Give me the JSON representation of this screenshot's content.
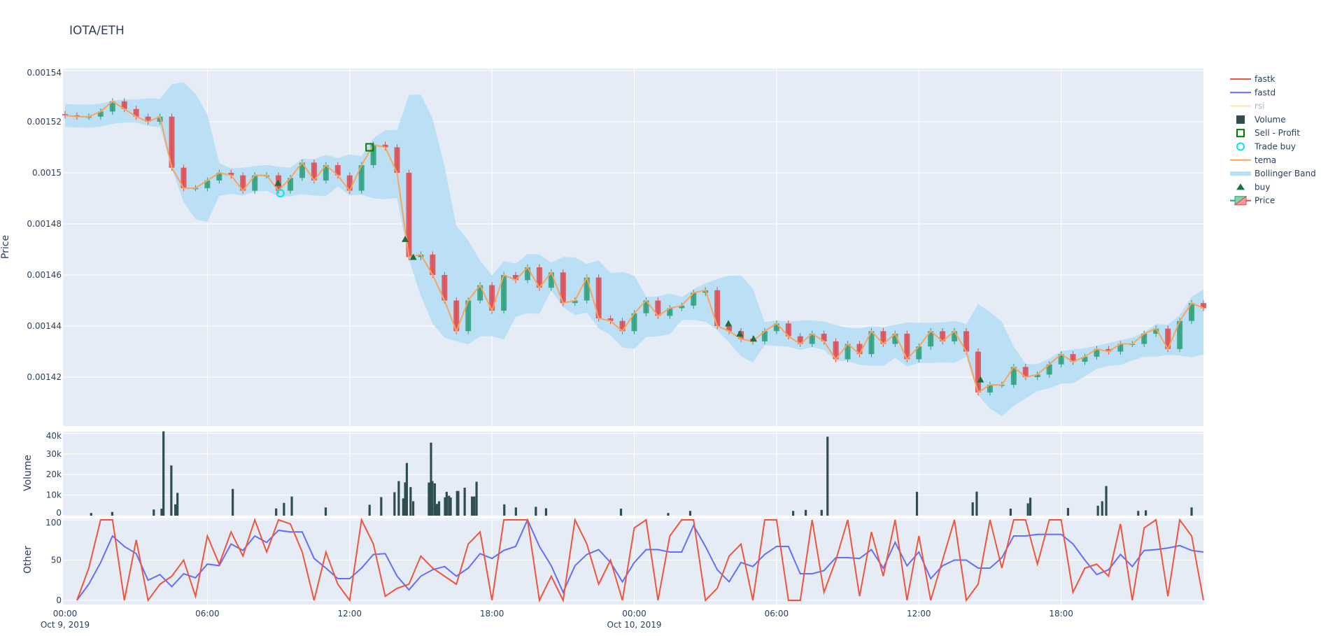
{
  "title": "IOTA/ETH",
  "colors": {
    "plot_bg": "#e5ecf6",
    "grid": "#ffffff",
    "increasing": "#2a9d78",
    "decreasing": "#e0474c",
    "tema": "#fca35a",
    "bollinger": "#b8dff5",
    "volume": "#2f4f4f",
    "fastk": "#ef553b",
    "fastd": "#636efa",
    "rsi": "#fde5b0",
    "buy": "#1f6f3a",
    "trade_buy": "#00e5ee",
    "sell_profit": "#007a00"
  },
  "legend": [
    {
      "label": "fastk",
      "icon": "line",
      "color_key": "fastk"
    },
    {
      "label": "fastd",
      "icon": "line",
      "color_key": "fastd"
    },
    {
      "label": "rsi",
      "icon": "line",
      "color_key": "rsi",
      "hidden": true
    },
    {
      "label": "Volume",
      "icon": "square-filled",
      "color_key": "volume"
    },
    {
      "label": "Sell - Profit",
      "icon": "square-open",
      "color_key": "sell_profit"
    },
    {
      "label": "Trade buy",
      "icon": "circle-open",
      "color_key": "trade_buy"
    },
    {
      "label": "tema",
      "icon": "line",
      "color_key": "tema"
    },
    {
      "label": "Bollinger Band",
      "icon": "band",
      "color_key": "bollinger"
    },
    {
      "label": "buy",
      "icon": "triangle-up",
      "color_key": "buy"
    },
    {
      "label": "Price",
      "icon": "candlestick",
      "color_key": "increasing"
    }
  ],
  "chart_data": [
    {
      "type": "candlestick",
      "ylabel": "Price",
      "ylim": [
        0.001404,
        0.001541
      ],
      "yticks": [
        0.00142,
        0.00144,
        0.00146,
        0.00148,
        0.0015,
        0.00152,
        0.00154
      ],
      "ytick_labels": [
        "0.00142",
        "0.00144",
        "0.00146",
        "0.00148",
        "0.0015",
        "0.00152",
        "0.00154"
      ],
      "x_start": "Oct 9, 2019 00:00",
      "x_step_minutes": 30,
      "close": [
        0.0015225,
        0.001522,
        0.001522,
        0.001524,
        0.001528,
        0.001525,
        0.001522,
        0.00152,
        0.001522,
        0.001502,
        0.001494,
        0.001494,
        0.001497,
        0.0015,
        0.001499,
        0.001493,
        0.001499,
        0.001499,
        0.001493,
        0.001498,
        0.001504,
        0.001497,
        0.001503,
        0.001499,
        0.001493,
        0.001503,
        0.001511,
        0.00151,
        0.0015,
        0.001467,
        0.001468,
        0.00146,
        0.00145,
        0.001438,
        0.00145,
        0.001456,
        0.001446,
        0.00146,
        0.001458,
        0.001463,
        0.001455,
        0.001461,
        0.001449,
        0.00145,
        0.001459,
        0.001443,
        0.001442,
        0.001438,
        0.001445,
        0.00145,
        0.001444,
        0.001447,
        0.001448,
        0.001453,
        0.001454,
        0.00144,
        0.001438,
        0.001435,
        0.001434,
        0.001438,
        0.001441,
        0.001436,
        0.001433,
        0.001437,
        0.001434,
        0.001427,
        0.001433,
        0.001429,
        0.001438,
        0.001433,
        0.001437,
        0.001427,
        0.001432,
        0.001438,
        0.001434,
        0.001438,
        0.00143,
        0.001414,
        0.001417,
        0.001417,
        0.001424,
        0.00142,
        0.001421,
        0.001425,
        0.001429,
        0.001426,
        0.001428,
        0.001431,
        0.00143,
        0.001433,
        0.001433,
        0.001437,
        0.001439,
        0.001431,
        0.001442,
        0.001449,
        0.001447
      ],
      "buy_markers": [
        [
          8.98,
          0.001496
        ],
        [
          14.34,
          0.001474
        ],
        [
          14.68,
          0.001467
        ],
        [
          27.97,
          0.001441
        ],
        [
          28.45,
          0.001437
        ],
        [
          29.03,
          0.001435
        ],
        [
          38.6,
          0.001419
        ]
      ],
      "trade_buy": [
        [
          9.08,
          0.001492
        ]
      ],
      "sell_profit": [
        [
          12.84,
          0.00151
        ]
      ]
    },
    {
      "type": "bar",
      "ylabel": "Volume",
      "ylim": [
        0,
        42000
      ],
      "yticks": [
        0,
        10000,
        20000,
        30000,
        40000
      ],
      "ytick_labels": [
        "0",
        "10k",
        "20k",
        "30k",
        "40k"
      ],
      "bars_hours_value": [
        [
          1.1,
          1300
        ],
        [
          1.99,
          1800
        ],
        [
          3.74,
          3000
        ],
        [
          4.07,
          3400
        ],
        [
          4.15,
          41000
        ],
        [
          4.48,
          24400
        ],
        [
          4.65,
          5500
        ],
        [
          4.74,
          11100
        ],
        [
          7.07,
          13000
        ],
        [
          8.9,
          3500
        ],
        [
          9.23,
          6200
        ],
        [
          9.56,
          9300
        ],
        [
          10.99,
          4000
        ],
        [
          12.84,
          5300
        ],
        [
          13.33,
          9000
        ],
        [
          13.89,
          11400
        ],
        [
          14.07,
          16800
        ],
        [
          14.26,
          8400
        ],
        [
          14.34,
          16200
        ],
        [
          14.41,
          25600
        ],
        [
          14.57,
          13900
        ],
        [
          14.68,
          7000
        ],
        [
          15.34,
          16100
        ],
        [
          15.43,
          35500
        ],
        [
          15.49,
          16800
        ],
        [
          15.59,
          15700
        ],
        [
          15.68,
          5700
        ],
        [
          15.77,
          7000
        ],
        [
          16.02,
          8900
        ],
        [
          16.09,
          11600
        ],
        [
          16.19,
          9700
        ],
        [
          16.26,
          8800
        ],
        [
          16.53,
          12000
        ],
        [
          16.58,
          12000
        ],
        [
          16.85,
          13600
        ],
        [
          17.16,
          9300
        ],
        [
          17.25,
          9300
        ],
        [
          17.35,
          16500
        ],
        [
          18.52,
          5500
        ],
        [
          19.01,
          4000
        ],
        [
          19.85,
          4300
        ],
        [
          20.28,
          3600
        ],
        [
          23.44,
          3400
        ],
        [
          25.43,
          1300
        ],
        [
          26.36,
          2300
        ],
        [
          30.7,
          2300
        ],
        [
          31.23,
          2800
        ],
        [
          31.9,
          2800
        ],
        [
          32.15,
          38400
        ],
        [
          35.92,
          11600
        ],
        [
          38.27,
          6500
        ],
        [
          38.44,
          11700
        ],
        [
          39.87,
          3400
        ],
        [
          40.6,
          6000
        ],
        [
          40.7,
          8750
        ],
        [
          42.29,
          3750
        ],
        [
          43.55,
          4800
        ],
        [
          43.73,
          7000
        ],
        [
          43.9,
          14400
        ],
        [
          45.25,
          2300
        ],
        [
          45.57,
          2600
        ],
        [
          47.5,
          4000
        ]
      ]
    },
    {
      "type": "line",
      "ylabel": "Other",
      "ylim": [
        0,
        100
      ],
      "yticks": [
        0,
        50,
        100
      ],
      "ytick_labels": [
        "0",
        "50",
        "100"
      ],
      "x_step_minutes": 30,
      "series": [
        {
          "name": "fastk",
          "values": [
            null,
            0,
            40,
            100,
            100,
            0,
            75,
            0,
            20,
            30,
            50,
            5,
            80,
            45,
            85,
            55,
            100,
            60,
            100,
            95,
            60,
            0,
            60,
            20,
            0,
            100,
            70,
            5,
            15,
            20,
            55,
            40,
            30,
            20,
            70,
            85,
            0,
            100,
            100,
            100,
            0,
            30,
            0,
            100,
            70,
            20,
            50,
            0,
            90,
            100,
            0,
            80,
            100,
            100,
            0,
            15,
            55,
            70,
            0,
            100,
            100,
            0,
            0,
            100,
            10,
            50,
            100,
            5,
            85,
            30,
            100,
            0,
            80,
            0,
            50,
            100,
            0,
            20,
            100,
            40,
            100,
            100,
            45,
            100,
            100,
            10,
            40,
            45,
            30,
            95,
            0,
            90,
            100,
            5,
            100,
            80,
            0
          ]
        },
        {
          "name": "fastd",
          "values": [
            null,
            0,
            20,
            47,
            80,
            67,
            58,
            25,
            32,
            17,
            33,
            28,
            45,
            43,
            70,
            62,
            80,
            72,
            87,
            85,
            85,
            52,
            40,
            27,
            27,
            40,
            57,
            58,
            30,
            13,
            30,
            38,
            42,
            30,
            40,
            58,
            52,
            62,
            67,
            100,
            67,
            43,
            10,
            43,
            57,
            63,
            47,
            23,
            47,
            63,
            63,
            60,
            60,
            93,
            67,
            38,
            23,
            47,
            42,
            57,
            67,
            67,
            33,
            33,
            37,
            53,
            53,
            52,
            63,
            40,
            72,
            43,
            60,
            27,
            43,
            50,
            50,
            40,
            40,
            53,
            80,
            80,
            82,
            82,
            82,
            70,
            50,
            32,
            38,
            57,
            42,
            62,
            63,
            65,
            68,
            62,
            60
          ]
        }
      ]
    }
  ],
  "xaxis": {
    "ticks": [
      {
        "hour": 0,
        "label": "00:00",
        "sub": "Oct 9, 2019"
      },
      {
        "hour": 6,
        "label": "06:00",
        "sub": ""
      },
      {
        "hour": 12,
        "label": "12:00",
        "sub": ""
      },
      {
        "hour": 18,
        "label": "18:00",
        "sub": ""
      },
      {
        "hour": 24,
        "label": "00:00",
        "sub": "Oct 10, 2019"
      },
      {
        "hour": 30,
        "label": "06:00",
        "sub": ""
      },
      {
        "hour": 36,
        "label": "12:00",
        "sub": ""
      },
      {
        "hour": 42,
        "label": "18:00",
        "sub": ""
      }
    ],
    "range_hours": [
      0,
      48
    ]
  }
}
